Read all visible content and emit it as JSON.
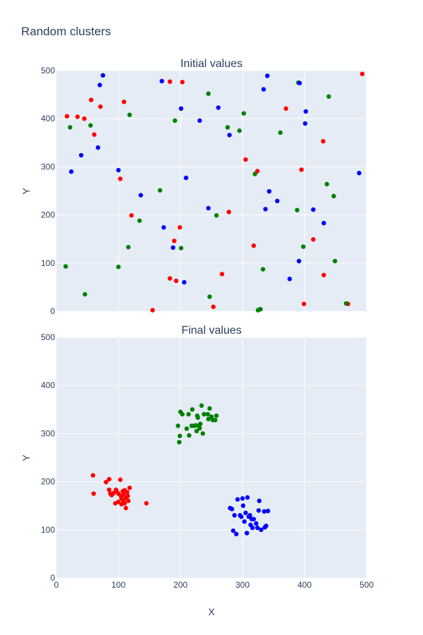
{
  "title": "Random clusters",
  "xlabel": "X",
  "ylabel": "Y",
  "colors": {
    "red": "#ff0000",
    "green": "#008000",
    "blue": "#0000ff",
    "plot_bg": "#e5ecf6",
    "text": "#2a3f5f"
  },
  "chart_data": [
    {
      "type": "scatter",
      "title": "Initial values",
      "xlim": [
        0,
        500
      ],
      "ylim": [
        0,
        500
      ],
      "xticks": [
        0,
        100,
        200,
        300,
        400,
        500
      ],
      "yticks": [
        0,
        100,
        200,
        300,
        400,
        500
      ],
      "grid": true,
      "series": [
        {
          "color": "#ff0000",
          "points": [
            [
              17,
              405
            ],
            [
              34,
              404
            ],
            [
              45,
              400
            ],
            [
              56,
              439
            ],
            [
              61,
              367
            ],
            [
              71,
              425
            ],
            [
              103,
              275
            ],
            [
              109,
              435
            ],
            [
              121,
              199
            ],
            [
              155,
              2
            ],
            [
              183,
              68
            ],
            [
              183,
              477
            ],
            [
              190,
              146
            ],
            [
              193,
              63
            ],
            [
              199,
              174
            ],
            [
              203,
              476
            ],
            [
              253,
              9
            ],
            [
              267,
              77
            ],
            [
              278,
              206
            ],
            [
              305,
              315
            ],
            [
              318,
              136
            ],
            [
              324,
              291
            ],
            [
              370,
              421
            ],
            [
              395,
              294
            ],
            [
              399,
              15
            ],
            [
              414,
              149
            ],
            [
              430,
              353
            ],
            [
              431,
              75
            ],
            [
              470,
              15
            ],
            [
              493,
              493
            ]
          ]
        },
        {
          "color": "#008000",
          "points": [
            [
              15,
              93
            ],
            [
              22,
              382
            ],
            [
              46,
              35
            ],
            [
              55,
              386
            ],
            [
              100,
              92
            ],
            [
              116,
              133
            ],
            [
              118,
              408
            ],
            [
              134,
              188
            ],
            [
              167,
              251
            ],
            [
              191,
              396
            ],
            [
              201,
              131
            ],
            [
              245,
              452
            ],
            [
              247,
              30
            ],
            [
              258,
              199
            ],
            [
              276,
              382
            ],
            [
              295,
              375
            ],
            [
              302,
              411
            ],
            [
              320,
              285
            ],
            [
              325,
              2
            ],
            [
              328,
              4
            ],
            [
              329,
              4
            ],
            [
              333,
              87
            ],
            [
              361,
              371
            ],
            [
              388,
              210
            ],
            [
              390,
              475
            ],
            [
              398,
              134
            ],
            [
              436,
              264
            ],
            [
              439,
              446
            ],
            [
              447,
              239
            ],
            [
              449,
              104
            ],
            [
              467,
              16
            ]
          ]
        },
        {
          "color": "#0000ff",
          "points": [
            [
              24,
              290
            ],
            [
              40,
              324
            ],
            [
              67,
              340
            ],
            [
              70,
              470
            ],
            [
              75,
              490
            ],
            [
              100,
              293
            ],
            [
              136,
              241
            ],
            [
              170,
              478
            ],
            [
              173,
              174
            ],
            [
              188,
              132
            ],
            [
              201,
              421
            ],
            [
              206,
              60
            ],
            [
              209,
              277
            ],
            [
              231,
              396
            ],
            [
              245,
              214
            ],
            [
              261,
              423
            ],
            [
              279,
              366
            ],
            [
              334,
              461
            ],
            [
              337,
              212
            ],
            [
              340,
              489
            ],
            [
              343,
              249
            ],
            [
              356,
              229
            ],
            [
              376,
              67
            ],
            [
              391,
              104
            ],
            [
              392,
              474
            ],
            [
              401,
              390
            ],
            [
              402,
              415
            ],
            [
              414,
              211
            ],
            [
              431,
              183
            ],
            [
              488,
              287
            ]
          ]
        }
      ]
    },
    {
      "type": "scatter",
      "title": "Final values",
      "xlim": [
        0,
        500
      ],
      "ylim": [
        0,
        500
      ],
      "xticks": [
        0,
        100,
        200,
        300,
        400,
        500
      ],
      "xticklabels": [
        "0",
        "100",
        "200",
        "300",
        "400",
        "500"
      ],
      "yticks": [
        0,
        100,
        200,
        300,
        400,
        500
      ],
      "grid": true,
      "series": [
        {
          "color": "#ff0000",
          "points": [
            [
              59,
              213
            ],
            [
              60,
              175
            ],
            [
              80,
              199
            ],
            [
              85,
              205
            ],
            [
              85,
              183
            ],
            [
              87,
              175
            ],
            [
              89,
              172
            ],
            [
              92,
              176
            ],
            [
              95,
              155
            ],
            [
              96,
              183
            ],
            [
              97,
              180
            ],
            [
              100,
              175
            ],
            [
              100,
              158
            ],
            [
              103,
              204
            ],
            [
              104,
              170
            ],
            [
              105,
              165
            ],
            [
              105,
              153
            ],
            [
              107,
              180
            ],
            [
              108,
              173
            ],
            [
              108,
              160
            ],
            [
              110,
              182
            ],
            [
              110,
              155
            ],
            [
              112,
              166
            ],
            [
              112,
              145
            ],
            [
              114,
              178
            ],
            [
              115,
              170
            ],
            [
              116,
              160
            ],
            [
              118,
              187
            ],
            [
              145,
              155
            ]
          ]
        },
        {
          "color": "#008000",
          "points": [
            [
              196,
              316
            ],
            [
              198,
              282
            ],
            [
              199,
              295
            ],
            [
              200,
              345
            ],
            [
              203,
              340
            ],
            [
              210,
              310
            ],
            [
              213,
              340
            ],
            [
              214,
              296
            ],
            [
              218,
              316
            ],
            [
              219,
              350
            ],
            [
              222,
              316
            ],
            [
              225,
              317
            ],
            [
              226,
              305
            ],
            [
              227,
              337
            ],
            [
              228,
              333
            ],
            [
              230,
              316
            ],
            [
              231,
              311
            ],
            [
              232,
              320
            ],
            [
              234,
              358
            ],
            [
              236,
              300
            ],
            [
              238,
              340
            ],
            [
              244,
              340
            ],
            [
              245,
              330
            ],
            [
              247,
              352
            ],
            [
              250,
              335
            ],
            [
              252,
              328
            ],
            [
              256,
              328
            ],
            [
              258,
              337
            ]
          ]
        },
        {
          "color": "#0000ff",
          "points": [
            [
              280,
              145
            ],
            [
              283,
              143
            ],
            [
              285,
              98
            ],
            [
              287,
              130
            ],
            [
              290,
              91
            ],
            [
              292,
              163
            ],
            [
              296,
              130
            ],
            [
              298,
              127
            ],
            [
              300,
              165
            ],
            [
              301,
              150
            ],
            [
              303,
              117
            ],
            [
              305,
              135
            ],
            [
              307,
              93
            ],
            [
              308,
              167
            ],
            [
              310,
              127
            ],
            [
              312,
              130
            ],
            [
              313,
              110
            ],
            [
              315,
              122
            ],
            [
              316,
              104
            ],
            [
              318,
              122
            ],
            [
              322,
              113
            ],
            [
              324,
              104
            ],
            [
              326,
              140
            ],
            [
              327,
              160
            ],
            [
              330,
              100
            ],
            [
              335,
              138
            ],
            [
              336,
              105
            ],
            [
              338,
              108
            ],
            [
              341,
              139
            ]
          ]
        }
      ]
    }
  ]
}
